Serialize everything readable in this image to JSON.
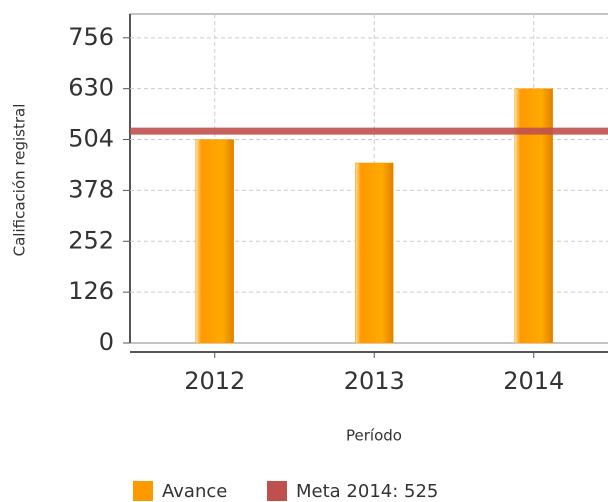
{
  "chart_data": {
    "type": "bar",
    "x_label": "Período",
    "y_label": "Calificación registral",
    "categories": [
      "2012",
      "2013",
      "2014"
    ],
    "series": [
      {
        "name": "Avance",
        "color": "#ff9900",
        "values": [
          504,
          446,
          630
        ]
      }
    ],
    "reference_line": {
      "name": "Meta 2014: 525",
      "color": "#c0504d",
      "value": 525
    },
    "ylim": [
      0,
      815
    ],
    "yticks": [
      0,
      126,
      252,
      378,
      504,
      630,
      756
    ],
    "grid": true
  }
}
